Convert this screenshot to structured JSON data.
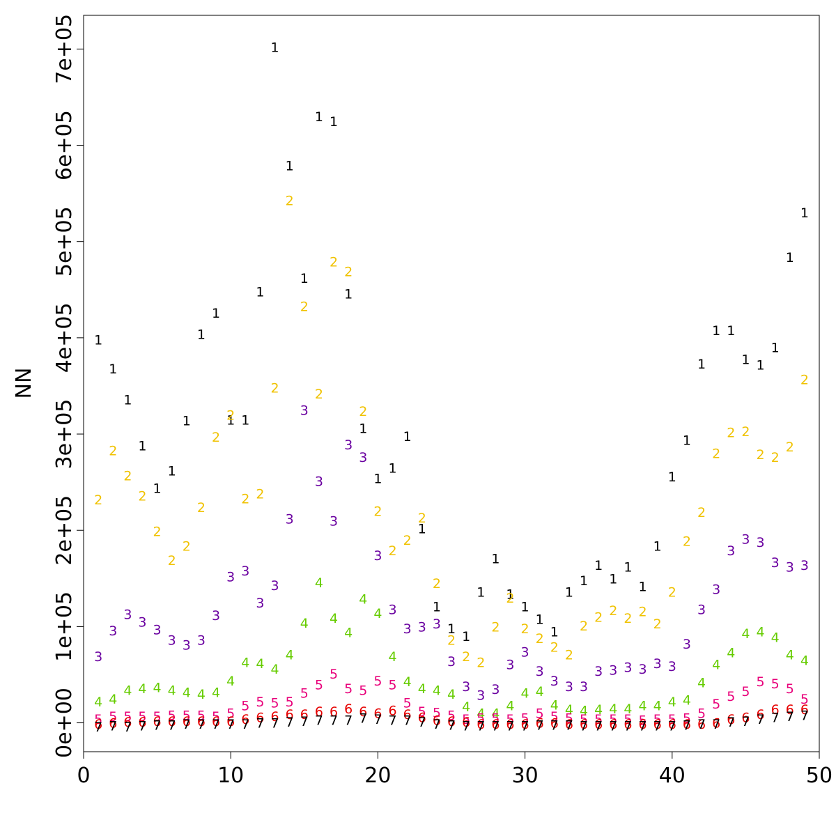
{
  "chart_data": {
    "type": "scatter",
    "marker": "series number as text glyph",
    "title": "",
    "xlabel": "",
    "ylabel": "NN",
    "xlim": [
      0,
      50
    ],
    "ylim": [
      -30000,
      735000
    ],
    "x_ticks": [
      {
        "value": 0,
        "label": "0"
      },
      {
        "value": 10,
        "label": "10"
      },
      {
        "value": 20,
        "label": "20"
      },
      {
        "value": 30,
        "label": "30"
      },
      {
        "value": 40,
        "label": "40"
      },
      {
        "value": 50,
        "label": "50"
      }
    ],
    "y_ticks": [
      {
        "value": 0,
        "label": "0e+00"
      },
      {
        "value": 100000,
        "label": "1e+05"
      },
      {
        "value": 200000,
        "label": "2e+05"
      },
      {
        "value": 300000,
        "label": "3e+05"
      },
      {
        "value": 400000,
        "label": "4e+05"
      },
      {
        "value": 500000,
        "label": "5e+05"
      },
      {
        "value": 600000,
        "label": "6e+05"
      },
      {
        "value": 700000,
        "label": "7e+05"
      }
    ],
    "grid": false,
    "legend": "none",
    "x": [
      1,
      2,
      3,
      4,
      5,
      6,
      7,
      8,
      9,
      10,
      11,
      12,
      13,
      14,
      15,
      16,
      17,
      18,
      19,
      20,
      21,
      22,
      23,
      24,
      25,
      26,
      27,
      28,
      29,
      30,
      31,
      32,
      33,
      34,
      35,
      36,
      37,
      38,
      39,
      40,
      41,
      42,
      43,
      44,
      45,
      46,
      47,
      48,
      49
    ],
    "series": [
      {
        "glyph": "1",
        "color": "#000000",
        "values": [
          398000,
          368000,
          336000,
          288000,
          244000,
          262000,
          314000,
          404000,
          426000,
          315000,
          315000,
          448000,
          702000,
          579000,
          462000,
          630000,
          625000,
          446000,
          306000,
          254000,
          265000,
          298000,
          202000,
          121000,
          98000,
          90000,
          136000,
          171000,
          134000,
          121000,
          108000,
          95000,
          136000,
          148000,
          164000,
          150000,
          162000,
          142000,
          184000,
          256000,
          294000,
          373000,
          408000,
          408000,
          378000,
          372000,
          390000,
          484000,
          530000
        ]
      },
      {
        "glyph": "2",
        "color": "#f0c200",
        "values": [
          232000,
          283000,
          257000,
          236000,
          199000,
          169000,
          184000,
          224000,
          297000,
          320000,
          233000,
          238000,
          348000,
          543000,
          433000,
          342000,
          479000,
          469000,
          324000,
          220000,
          179000,
          190000,
          213000,
          145000,
          86000,
          69000,
          63000,
          100000,
          130000,
          98000,
          88000,
          79000,
          71000,
          101000,
          110000,
          117000,
          109000,
          116000,
          103000,
          136000,
          189000,
          219000,
          280000,
          302000,
          303000,
          279000,
          276000,
          287000,
          357000
        ]
      },
      {
        "glyph": "3",
        "color": "#6a00a0",
        "values": [
          69000,
          96000,
          113000,
          105000,
          97000,
          86000,
          81000,
          86000,
          112000,
          152000,
          158000,
          125000,
          143000,
          212000,
          325000,
          251000,
          210000,
          289000,
          276000,
          174000,
          118000,
          98000,
          100000,
          103000,
          64000,
          38000,
          29000,
          35000,
          61000,
          74000,
          54000,
          44000,
          38000,
          38000,
          54000,
          55000,
          58000,
          56000,
          62000,
          59000,
          82000,
          118000,
          139000,
          179000,
          191000,
          188000,
          167000,
          162000,
          164000
        ]
      },
      {
        "glyph": "4",
        "color": "#66cc00",
        "values": [
          22000,
          25000,
          34000,
          36000,
          37000,
          34000,
          32000,
          30000,
          32000,
          44000,
          63000,
          62000,
          56000,
          71000,
          104000,
          146000,
          109000,
          94000,
          129000,
          114000,
          69000,
          43000,
          36000,
          34000,
          30000,
          17000,
          10000,
          10000,
          18000,
          31000,
          33000,
          19000,
          14000,
          13000,
          14000,
          15000,
          15000,
          18000,
          18000,
          22000,
          24000,
          42000,
          61000,
          73000,
          93000,
          95000,
          89000,
          71000,
          65000
        ]
      },
      {
        "glyph": "5",
        "color": "#e8007a",
        "values": [
          4000,
          7000,
          7000,
          7000,
          7000,
          8000,
          8000,
          8000,
          7000,
          10000,
          18000,
          22000,
          21000,
          22000,
          31000,
          40000,
          51000,
          36000,
          34000,
          44000,
          40000,
          21000,
          12000,
          11000,
          8000,
          4000,
          5000,
          5000,
          4000,
          5000,
          10000,
          7000,
          5000,
          4000,
          4000,
          4000,
          4000,
          3000,
          4000,
          4000,
          5000,
          10000,
          20000,
          28000,
          33000,
          43000,
          41000,
          36000,
          25000
        ]
      },
      {
        "glyph": "6",
        "color": "#e60000",
        "values": [
          -1000,
          0,
          1000,
          1000,
          2000,
          2000,
          2000,
          2000,
          2000,
          2000,
          4000,
          6000,
          7000,
          9000,
          9000,
          12000,
          12000,
          15000,
          12000,
          10000,
          13000,
          9000,
          6000,
          3000,
          2000,
          1000,
          -1000,
          -1000,
          -1000,
          -1000,
          0,
          0,
          -1000,
          -1000,
          -1000,
          -1000,
          -1000,
          -1000,
          -1000,
          -1000,
          -1000,
          -1000,
          0,
          4000,
          6000,
          9000,
          14000,
          14000,
          14000
        ]
      },
      {
        "glyph": "7",
        "color": "#000000",
        "values": [
          -4000,
          -3000,
          -4000,
          -3000,
          -2000,
          -2000,
          -1000,
          -1000,
          -1000,
          -1000,
          -1000,
          0,
          0,
          1000,
          2000,
          3000,
          3000,
          3000,
          5000,
          4000,
          3000,
          3000,
          1000,
          -1000,
          -2000,
          -3000,
          -3000,
          -3000,
          -3000,
          -3000,
          -2000,
          -2000,
          -2000,
          -3000,
          -3000,
          -3000,
          -3000,
          -3000,
          -3000,
          -3000,
          -2000,
          -1000,
          -1000,
          1000,
          2000,
          4000,
          6000,
          7000,
          8000
        ]
      }
    ]
  }
}
